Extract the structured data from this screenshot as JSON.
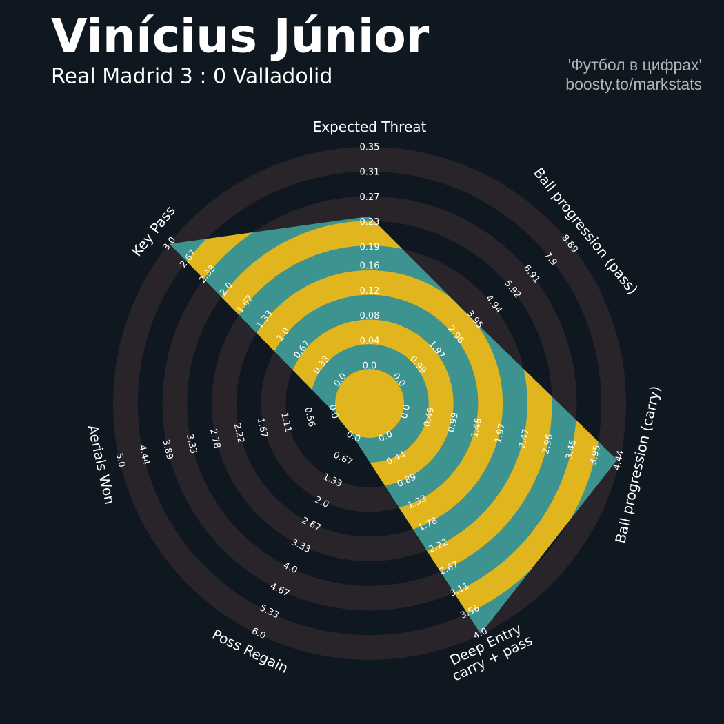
{
  "chart_data": {
    "type": "radar",
    "title": "Vinícius Júnior",
    "subtitle": "Real Madrid 3 : 0 Valladolid",
    "credits": [
      "'Футбол в цифрах'",
      "boosty.to/markstats"
    ],
    "params": [
      "Expected Threat",
      "Ball progression (pass)",
      "Ball progression (carry)",
      "Deep Entry\ncarry + pass",
      "Poss Regain",
      "Aerials Won",
      "Key Pass"
    ],
    "values": [
      0.24,
      3.9,
      4.4,
      4.0,
      0,
      0,
      3.0
    ],
    "ticks": [
      [
        {
          "value": 0,
          "label": "0.0"
        },
        0.04,
        0.08,
        0.12,
        0.16,
        0.19,
        0.23,
        0.27,
        0.31,
        0.35
      ],
      [
        {
          "value": 0,
          "label": "0.0"
        },
        0.99,
        1.97,
        2.96,
        3.95,
        4.94,
        5.92,
        6.91,
        7.9,
        8.89
      ],
      [
        {
          "value": 0,
          "label": "0.0"
        },
        0.49,
        0.99,
        1.48,
        1.97,
        2.47,
        2.96,
        3.45,
        3.95,
        4.44
      ],
      [
        {
          "value": 0,
          "label": "0.0"
        },
        0.44,
        0.89,
        1.33,
        1.78,
        2.22,
        2.67,
        3.11,
        3.56,
        {
          "value": 4,
          "label": "4.0"
        }
      ],
      [
        {
          "value": 0,
          "label": "0.0"
        },
        0.67,
        1.33,
        {
          "value": 2,
          "label": "2.0"
        },
        2.67,
        3.33,
        {
          "value": 4,
          "label": "4.0"
        },
        4.67,
        5.33,
        {
          "value": 6,
          "label": "6.0"
        }
      ],
      [
        {
          "value": 0,
          "label": "0.0"
        },
        0.56,
        1.11,
        1.67,
        2.22,
        2.78,
        3.33,
        3.89,
        4.44,
        {
          "value": 5,
          "label": "5.0"
        }
      ],
      [
        {
          "value": 0,
          "label": "0.0"
        },
        0.33,
        0.67,
        {
          "value": 1,
          "label": "1.0"
        },
        1.33,
        1.67,
        {
          "value": 2,
          "label": "2.0"
        },
        2.33,
        2.67,
        {
          "value": 3,
          "label": "3.0"
        }
      ]
    ],
    "radar_color": "#3d938f",
    "rings_color": "#e1b51d",
    "background_ring_color": "#28242a"
  }
}
